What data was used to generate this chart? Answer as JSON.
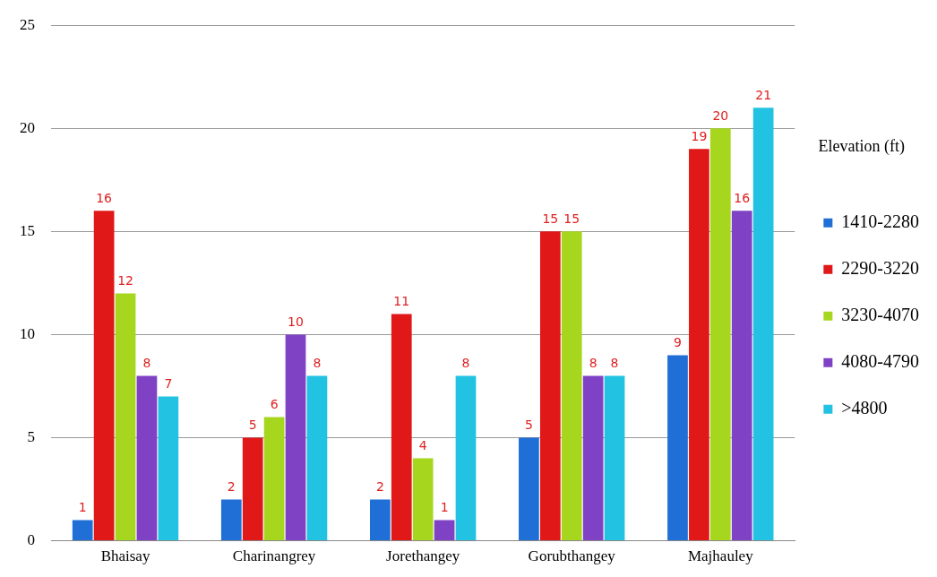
{
  "chart_data": {
    "type": "bar",
    "legend_title": "Elevation (ft)",
    "categories": [
      "Bhaisay",
      "Charinangrey",
      "Jorethangey",
      "Gorubthangey",
      "Majhauley"
    ],
    "series": [
      {
        "name": "1410-2280",
        "color": "#1f6fd6",
        "values": [
          1,
          2,
          2,
          5,
          9
        ]
      },
      {
        "name": "2290-3220",
        "color": "#e01818",
        "values": [
          16,
          5,
          11,
          15,
          19
        ]
      },
      {
        "name": "3230-4070",
        "color": "#a6d61e",
        "values": [
          12,
          6,
          4,
          15,
          20
        ]
      },
      {
        "name": "4080-4790",
        "color": "#8042c4",
        "values": [
          8,
          10,
          1,
          8,
          16
        ]
      },
      {
        "name": ">4800",
        "color": "#22c2e2",
        "values": [
          7,
          8,
          8,
          8,
          21
        ]
      }
    ],
    "ylim": [
      0,
      25
    ],
    "yticks": [
      0,
      5,
      10,
      15,
      20,
      25
    ],
    "grid": "y",
    "legend": "right",
    "data_labels": true
  }
}
